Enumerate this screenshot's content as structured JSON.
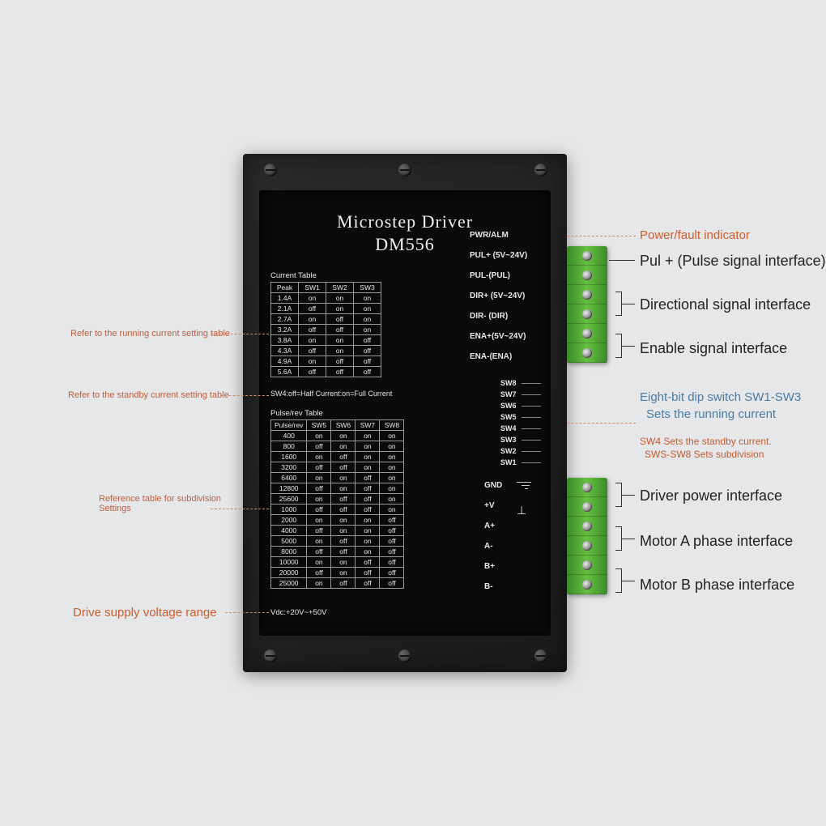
{
  "title": "Microstep  Driver",
  "model": "DM556",
  "current_table": {
    "title": "Current Table",
    "columns": [
      "Peak",
      "SW1",
      "SW2",
      "SW3"
    ],
    "rows": [
      [
        "1.4A",
        "on",
        "on",
        "on"
      ],
      [
        "2.1A",
        "off",
        "on",
        "on"
      ],
      [
        "2.7A",
        "on",
        "off",
        "on"
      ],
      [
        "3.2A",
        "off",
        "off",
        "on"
      ],
      [
        "3.8A",
        "on",
        "on",
        "off"
      ],
      [
        "4.3A",
        "off",
        "on",
        "off"
      ],
      [
        "4.9A",
        "on",
        "off",
        "off"
      ],
      [
        "5.6A",
        "off",
        "off",
        "off"
      ]
    ]
  },
  "sw4_note": "SW4:off=Half Current:on=Full Current",
  "pulse_table": {
    "title": "Pulse/rev Table",
    "columns": [
      "Pulse/rev",
      "SW5",
      "SW6",
      "SW7",
      "SW8"
    ],
    "rows": [
      [
        "400",
        "on",
        "on",
        "on",
        "on"
      ],
      [
        "800",
        "off",
        "on",
        "on",
        "on"
      ],
      [
        "1600",
        "on",
        "off",
        "on",
        "on"
      ],
      [
        "3200",
        "off",
        "off",
        "on",
        "on"
      ],
      [
        "6400",
        "on",
        "on",
        "off",
        "on"
      ],
      [
        "12800",
        "off",
        "on",
        "off",
        "on"
      ],
      [
        "25600",
        "on",
        "off",
        "off",
        "on"
      ],
      [
        "1000",
        "off",
        "off",
        "off",
        "on"
      ],
      [
        "2000",
        "on",
        "on",
        "on",
        "off"
      ],
      [
        "4000",
        "off",
        "on",
        "on",
        "off"
      ],
      [
        "5000",
        "on",
        "off",
        "on",
        "off"
      ],
      [
        "8000",
        "off",
        "off",
        "on",
        "off"
      ],
      [
        "10000",
        "on",
        "on",
        "off",
        "off"
      ],
      [
        "20000",
        "off",
        "on",
        "off",
        "off"
      ],
      [
        "25000",
        "on",
        "off",
        "off",
        "off"
      ]
    ]
  },
  "vdc": "Vdc:+20V~+50V",
  "pins_top": [
    "PWR/ALM",
    "PUL+ (5V~24V)",
    "PUL-(PUL)",
    "DIR+ (5V~24V)",
    "DIR- (DIR)",
    "ENA+(5V~24V)",
    "ENA-(ENA)"
  ],
  "sw_labels": [
    "SW8",
    "SW7",
    "SW6",
    "SW5",
    "SW4",
    "SW3",
    "SW2",
    "SW1"
  ],
  "pins_bot": [
    "GND",
    "+V",
    "A+",
    "A-",
    "B+",
    "B-"
  ],
  "callouts_left": {
    "running_current": "Refer to the running current setting table",
    "standby_current": "Refer to the standby current setting table",
    "subdivision1": "Reference table for subdivision",
    "subdivision2": "Settings",
    "voltage": "Drive supply voltage range"
  },
  "callouts_right": {
    "power": "Power/fault indicator",
    "pul": "Pul + (Pulse signal interface)",
    "dir": "Directional signal interface",
    "ena": "Enable signal interface",
    "dip1": "Eight-bit dip switch SW1-SW3",
    "dip2": "Sets the running current",
    "dip3": "SW4 Sets the standby current.",
    "dip4": "SWS-SW8 Sets subdivision",
    "drv_power": "Driver power interface",
    "motor_a": "Motor A phase interface",
    "motor_b": "Motor B phase interface"
  },
  "colors": {
    "bg": "#e5e7e9",
    "body": "#1a1a1a",
    "text_light": "#e8e8e8",
    "orange": "#d15c2e",
    "dark": "#222222",
    "terminal": "#5ab038"
  }
}
